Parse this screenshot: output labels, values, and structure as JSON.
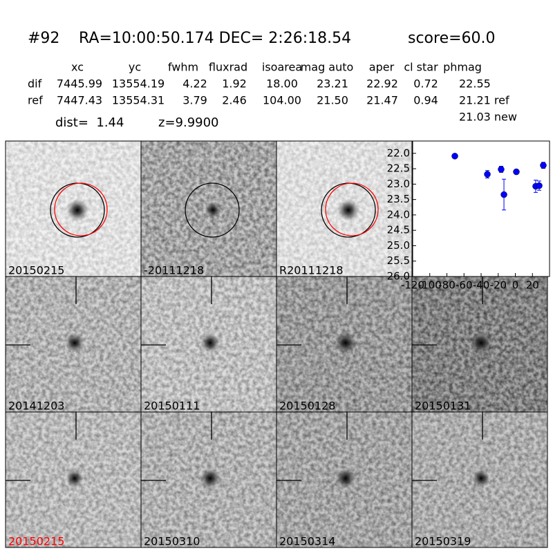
{
  "header": {
    "id": "#92",
    "coords": "RA=10:00:50.174 DEC= 2:26:18.54",
    "score": "score=60.0"
  },
  "table": {
    "columns": [
      "xc",
      "yc",
      "fwhm",
      "fluxrad",
      "isoarea",
      "mag auto",
      "aper",
      "cl star",
      "phmag"
    ],
    "rows": [
      {
        "label": "dif",
        "cells": [
          "7445.99",
          "13554.19",
          "4.22",
          "1.92",
          "18.00",
          "23.21",
          "22.92",
          "0.72",
          "22.55"
        ]
      },
      {
        "label": "ref",
        "cells": [
          "7447.43",
          "13554.31",
          "3.79",
          "2.46",
          "104.00",
          "21.50",
          "21.47",
          "0.94",
          "21.21 ref"
        ]
      }
    ],
    "extra": "21.03 new"
  },
  "dist": "dist=  1.44",
  "z": "z=9.9900",
  "panels": [
    {
      "label": "20150215"
    },
    {
      "label": "-20111218"
    },
    {
      "label": "R20111218"
    },
    {
      "label": "20141203"
    },
    {
      "label": "20150111"
    },
    {
      "label": "20150128"
    },
    {
      "label": "20150131"
    },
    {
      "label": "20150215",
      "color": "#ff0000"
    },
    {
      "label": "20150310"
    },
    {
      "label": "20150314"
    },
    {
      "label": "20150319"
    }
  ],
  "chart_data": {
    "type": "scatter",
    "series": [
      {
        "color": "#0000ff",
        "x": [
          -70.7,
          -32.7,
          -16.6,
          -13.3,
          1.2,
          23.8,
          27.9,
          32.7
        ],
        "values": [
          22.09,
          22.68,
          22.52,
          23.34,
          22.6,
          23.07,
          23.05,
          22.39
        ],
        "errors": [
          0.05,
          0.12,
          0.1,
          0.5,
          0.07,
          0.2,
          0.15,
          0.1
        ]
      }
    ],
    "xlim": [
      -120,
      40
    ],
    "xticks": [
      -120,
      -100,
      -80,
      -60,
      -40,
      -20,
      0,
      20
    ],
    "ylim": [
      21.6,
      26.0
    ],
    "y_inverted": true,
    "yticks": [
      {
        "value": 22,
        "label": "22.0"
      },
      {
        "value": 22.5,
        "label": "22.5"
      },
      {
        "value": 23,
        "label": "23.0"
      },
      {
        "value": 23.5,
        "label": "23.5"
      },
      {
        "value": 24,
        "label": "24.0"
      },
      {
        "value": 24.5,
        "label": "24.5"
      },
      {
        "value": 25,
        "label": "25.0"
      },
      {
        "value": 25.5,
        "label": "25.5"
      },
      {
        "value": 26,
        "label": "26.0"
      }
    ]
  }
}
